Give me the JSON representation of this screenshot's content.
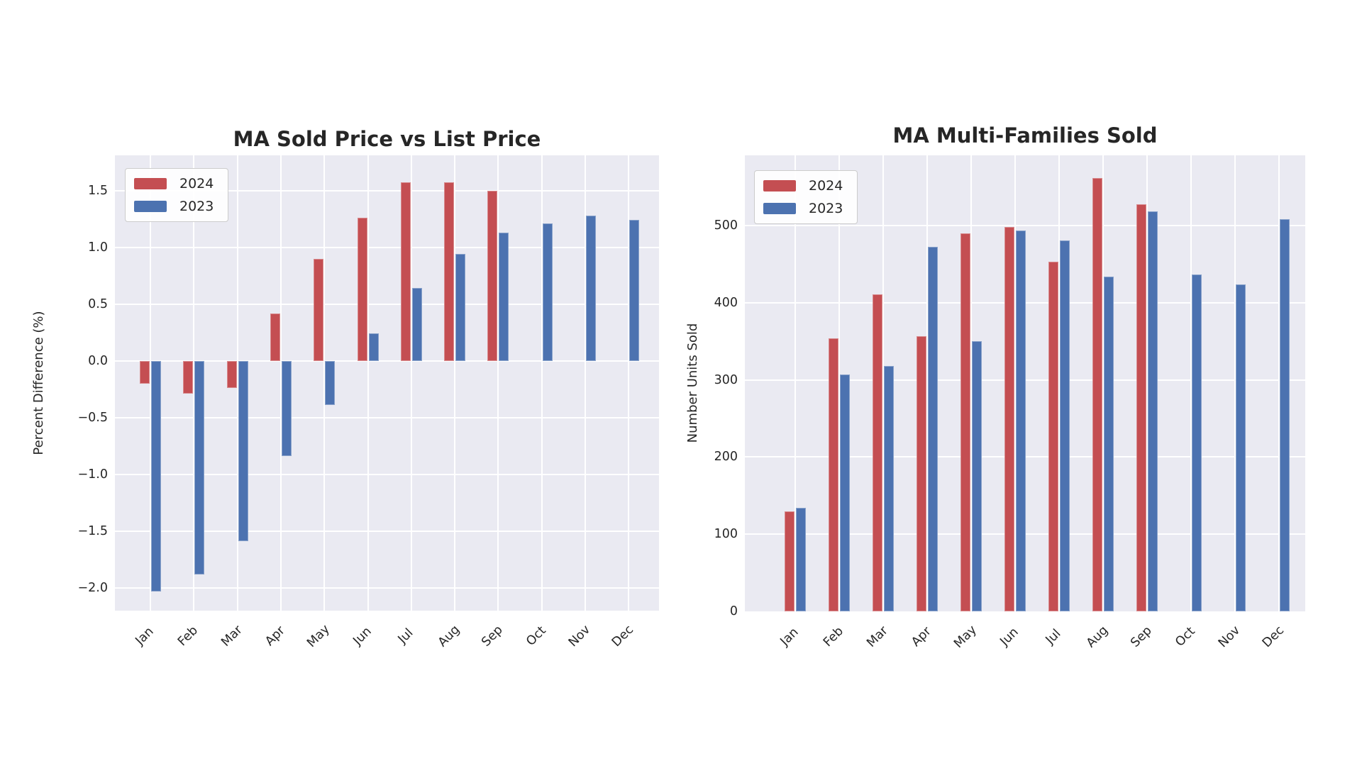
{
  "figure": {
    "background": "#ffffff",
    "plot_background": "#eaeaf2",
    "grid_color": "#ffffff",
    "text_color": "#262626"
  },
  "chart_data": [
    {
      "type": "bar",
      "title": "MA Sold Price vs List Price",
      "xlabel": "",
      "ylabel": "Percent Difference (%)",
      "categories": [
        "Jan",
        "Feb",
        "Mar",
        "Apr",
        "May",
        "Jun",
        "Jul",
        "Aug",
        "Sep",
        "Oct",
        "Nov",
        "Dec"
      ],
      "series": [
        {
          "name": "2024",
          "color": "#c44e52",
          "values": [
            -0.2,
            -0.29,
            -0.24,
            0.42,
            0.9,
            1.26,
            1.57,
            1.57,
            1.5,
            null,
            null,
            null
          ]
        },
        {
          "name": "2023",
          "color": "#4c72b0",
          "values": [
            -2.03,
            -1.88,
            -1.59,
            -0.84,
            -0.39,
            0.24,
            0.64,
            0.94,
            1.13,
            1.21,
            1.28,
            1.24
          ]
        }
      ],
      "yticks": [
        1.5,
        1.0,
        0.5,
        0.0,
        -0.5,
        -1.0,
        -1.5,
        -2.0
      ],
      "ytick_labels": [
        "1.5",
        "1.0",
        "0.5",
        "0.0",
        "−0.5",
        "−1.0",
        "−1.5",
        "−2.0"
      ],
      "ylim": [
        -2.2,
        1.81
      ],
      "grid": true,
      "legend_position": "upper left",
      "xtick_rotation": 45
    },
    {
      "type": "bar",
      "title": "MA Multi-Families Sold",
      "xlabel": "",
      "ylabel": "Number Units Sold",
      "categories": [
        "Jan",
        "Feb",
        "Mar",
        "Apr",
        "May",
        "Jun",
        "Jul",
        "Aug",
        "Sep",
        "Oct",
        "Nov",
        "Dec"
      ],
      "series": [
        {
          "name": "2024",
          "color": "#c44e52",
          "values": [
            130,
            354,
            411,
            357,
            490,
            498,
            453,
            562,
            528,
            null,
            null,
            null
          ]
        },
        {
          "name": "2023",
          "color": "#4c72b0",
          "values": [
            134,
            307,
            318,
            472,
            350,
            494,
            481,
            434,
            518,
            437,
            424,
            508
          ]
        }
      ],
      "yticks": [
        0,
        100,
        200,
        300,
        400,
        500
      ],
      "ytick_labels": [
        "0",
        "100",
        "200",
        "300",
        "400",
        "500"
      ],
      "ylim": [
        0,
        591
      ],
      "grid": true,
      "legend_position": "upper left",
      "xtick_rotation": 45
    }
  ]
}
